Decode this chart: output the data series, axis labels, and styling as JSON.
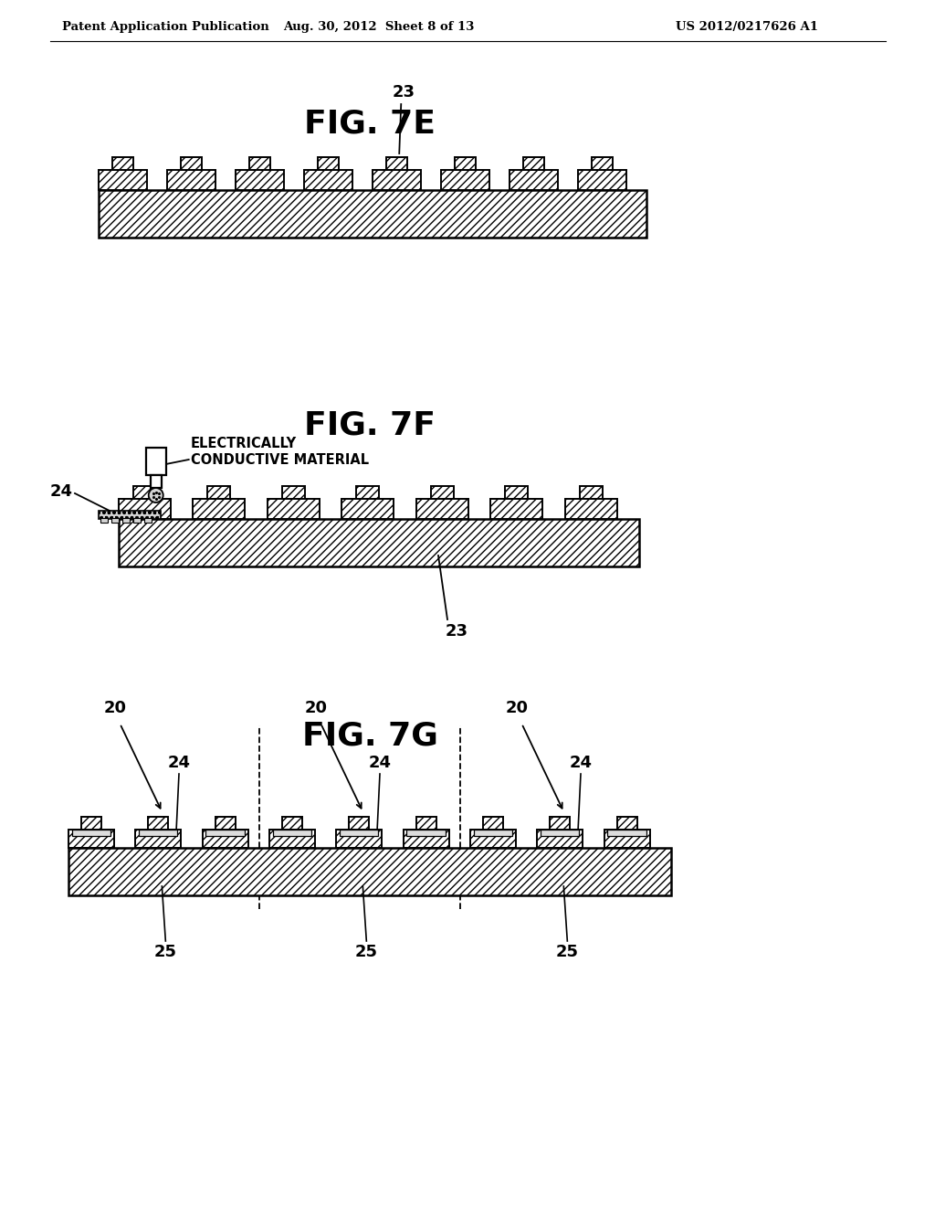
{
  "bg_color": "#ffffff",
  "header_left": "Patent Application Publication",
  "header_mid": "Aug. 30, 2012  Sheet 8 of 13",
  "header_right": "US 2012/0217626 A1",
  "fig7e_title": "FIG. 7E",
  "fig7f_title": "FIG. 7F",
  "fig7g_title": "FIG. 7G",
  "label_23": "23",
  "label_24": "24",
  "label_25": "25",
  "label_20": "20",
  "ecm_line1": "ELECTRICALLY",
  "ecm_line2": "CONDUCTIVE MATERIAL"
}
